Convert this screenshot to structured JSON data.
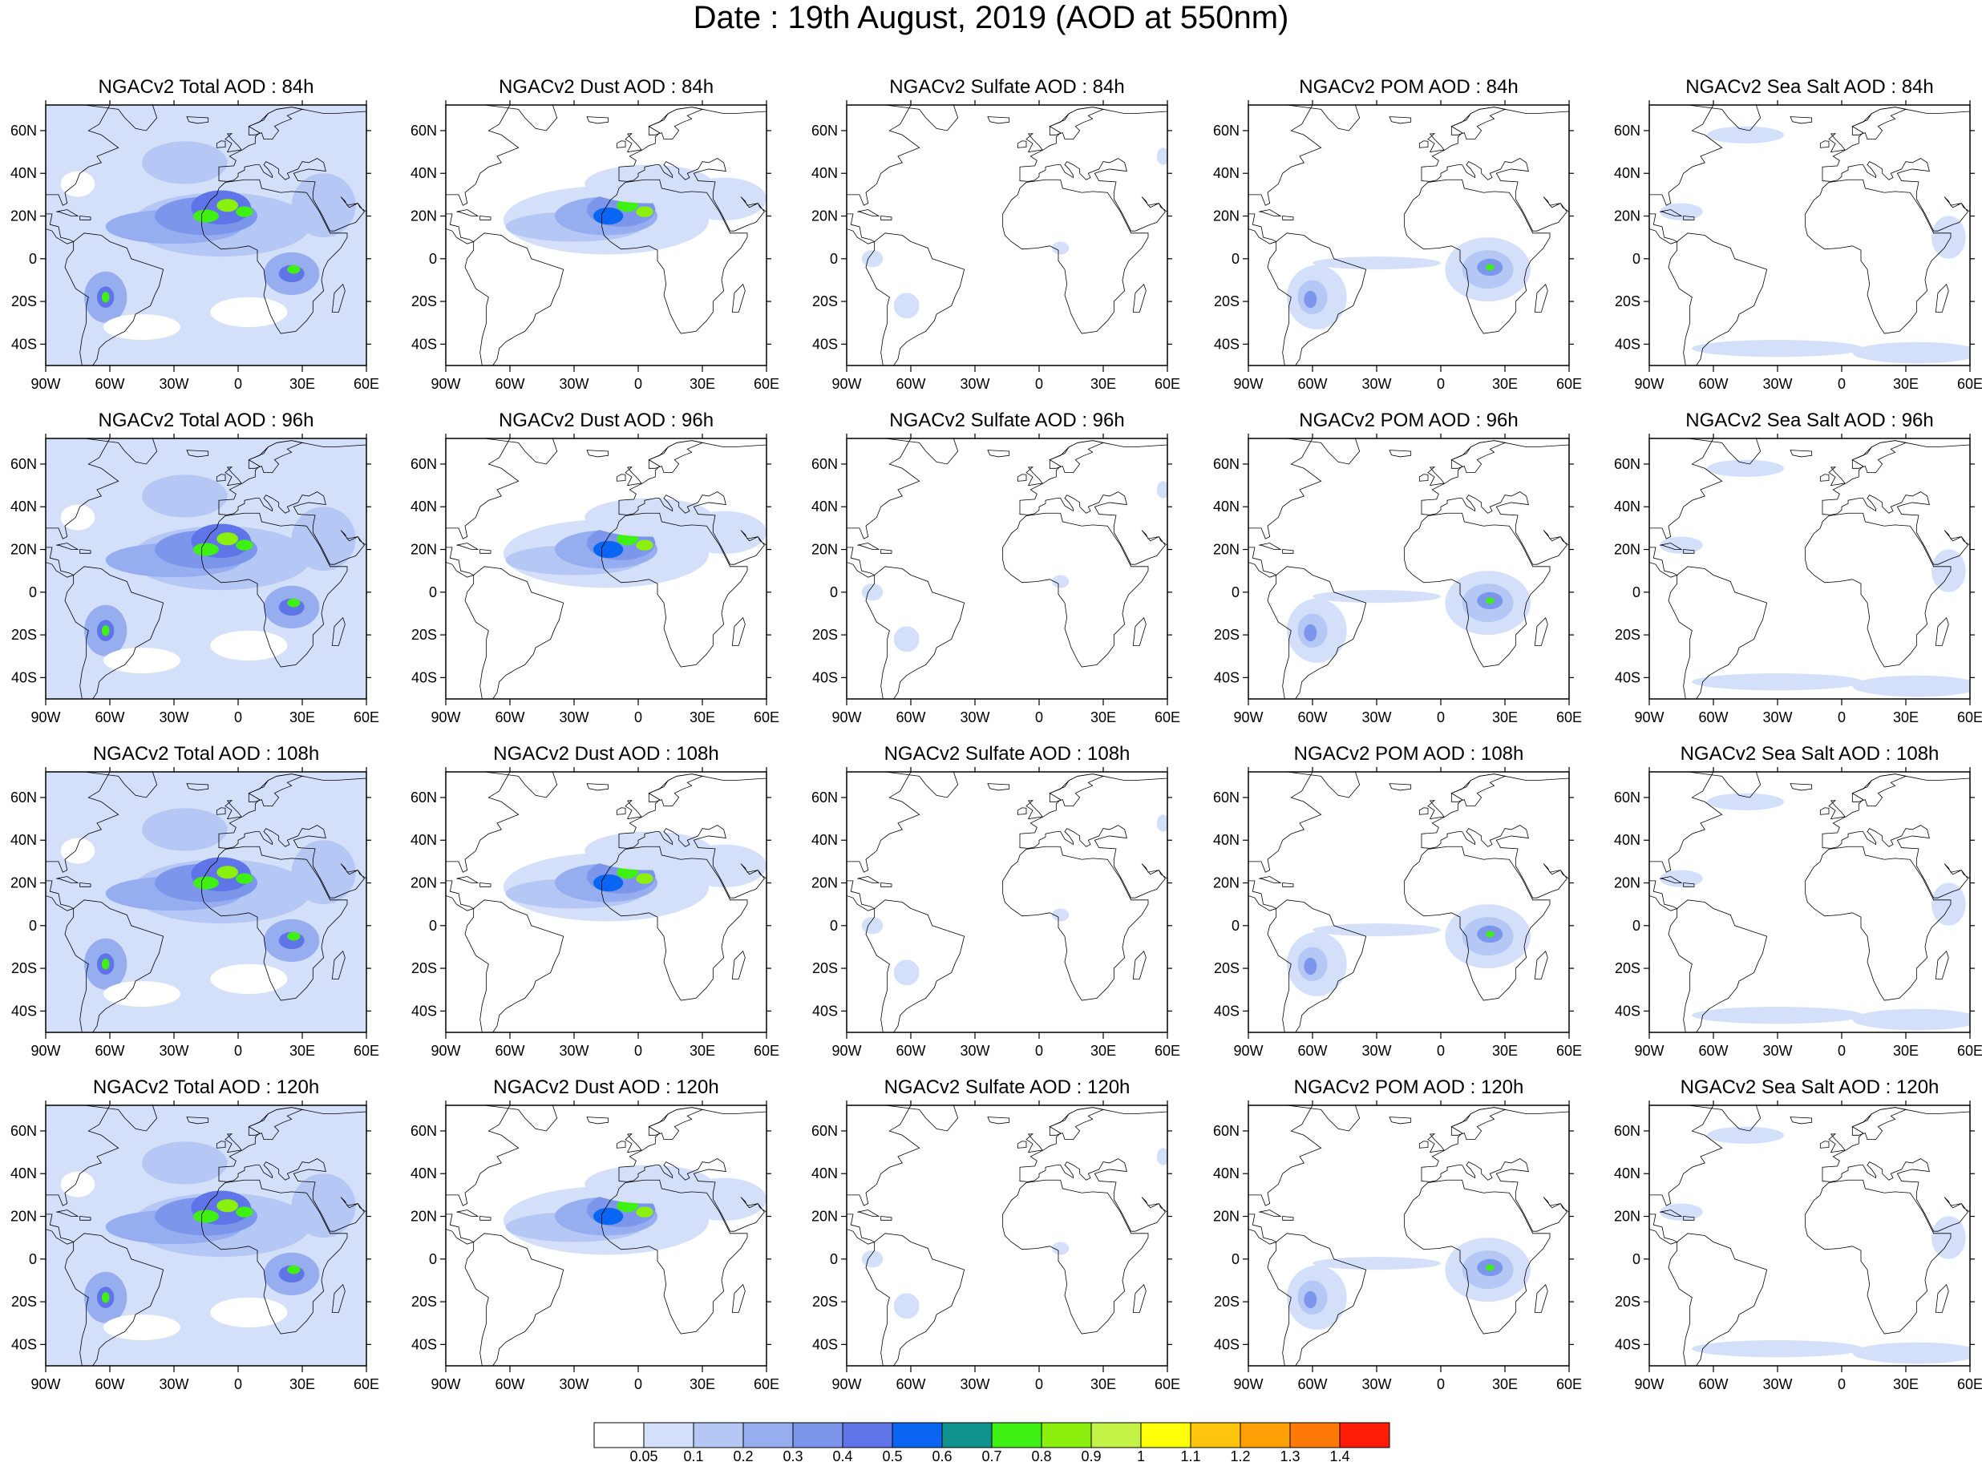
{
  "title": "Date : 19th August, 2019 (AOD at 550nm)",
  "panels": [
    {
      "title": "NGACv2 Total AOD : 84h",
      "species": "total",
      "lead": "84h"
    },
    {
      "title": "NGACv2 Dust AOD : 84h",
      "species": "dust",
      "lead": "84h"
    },
    {
      "title": "NGACv2 Sulfate AOD : 84h",
      "species": "sulfate",
      "lead": "84h"
    },
    {
      "title": "NGACv2 POM AOD : 84h",
      "species": "pom",
      "lead": "84h"
    },
    {
      "title": "NGACv2 Sea Salt AOD : 84h",
      "species": "seasalt",
      "lead": "84h"
    },
    {
      "title": "NGACv2 Total AOD : 96h",
      "species": "total",
      "lead": "96h"
    },
    {
      "title": "NGACv2 Dust AOD : 96h",
      "species": "dust",
      "lead": "96h"
    },
    {
      "title": "NGACv2 Sulfate AOD : 96h",
      "species": "sulfate",
      "lead": "96h"
    },
    {
      "title": "NGACv2 POM AOD : 96h",
      "species": "pom",
      "lead": "96h"
    },
    {
      "title": "NGACv2 Sea Salt AOD : 96h",
      "species": "seasalt",
      "lead": "96h"
    },
    {
      "title": "NGACv2 Total AOD : 108h",
      "species": "total",
      "lead": "108h"
    },
    {
      "title": "NGACv2 Dust AOD : 108h",
      "species": "dust",
      "lead": "108h"
    },
    {
      "title": "NGACv2 Sulfate AOD : 108h",
      "species": "sulfate",
      "lead": "108h"
    },
    {
      "title": "NGACv2 POM AOD : 108h",
      "species": "pom",
      "lead": "108h"
    },
    {
      "title": "NGACv2 Sea Salt AOD : 108h",
      "species": "seasalt",
      "lead": "108h"
    },
    {
      "title": "NGACv2 Total AOD : 120h",
      "species": "total",
      "lead": "120h"
    },
    {
      "title": "NGACv2 Dust AOD : 120h",
      "species": "dust",
      "lead": "120h"
    },
    {
      "title": "NGACv2 Sulfate AOD : 120h",
      "species": "sulfate",
      "lead": "120h"
    },
    {
      "title": "NGACv2 POM AOD : 120h",
      "species": "pom",
      "lead": "120h"
    },
    {
      "title": "NGACv2 Sea Salt  AOD : 120h",
      "species": "seasalt",
      "lead": "120h"
    }
  ],
  "map": {
    "lon_range": [
      -90,
      60
    ],
    "lat_range": [
      -50,
      72
    ],
    "lon_ticks": [
      {
        "value": -90,
        "label": "90W"
      },
      {
        "value": -60,
        "label": "60W"
      },
      {
        "value": -30,
        "label": "30W"
      },
      {
        "value": 0,
        "label": "0"
      },
      {
        "value": 30,
        "label": "30E"
      },
      {
        "value": 60,
        "label": "60E"
      }
    ],
    "lat_ticks": [
      {
        "value": 60,
        "label": "60N"
      },
      {
        "value": 40,
        "label": "40N"
      },
      {
        "value": 20,
        "label": "20N"
      },
      {
        "value": 0,
        "label": "0"
      },
      {
        "value": -20,
        "label": "20S"
      },
      {
        "value": -40,
        "label": "40S"
      }
    ]
  },
  "colorbar": {
    "labels": [
      "0.05",
      "0.1",
      "0.2",
      "0.3",
      "0.4",
      "0.5",
      "0.6",
      "0.7",
      "0.8",
      "0.9",
      "1",
      "1.1",
      "1.2",
      "1.3",
      "1.4"
    ],
    "colors": [
      "#ffffff",
      "#d4dffa",
      "#b5c7f5",
      "#96adf0",
      "#7c96ec",
      "#5f74e6",
      "#0a66f2",
      "#10938e",
      "#3ff015",
      "#8cf00f",
      "#c2f246",
      "#ffff0a",
      "#ffc40c",
      "#ff9f06",
      "#ff7908",
      "#ff1d08"
    ]
  }
}
